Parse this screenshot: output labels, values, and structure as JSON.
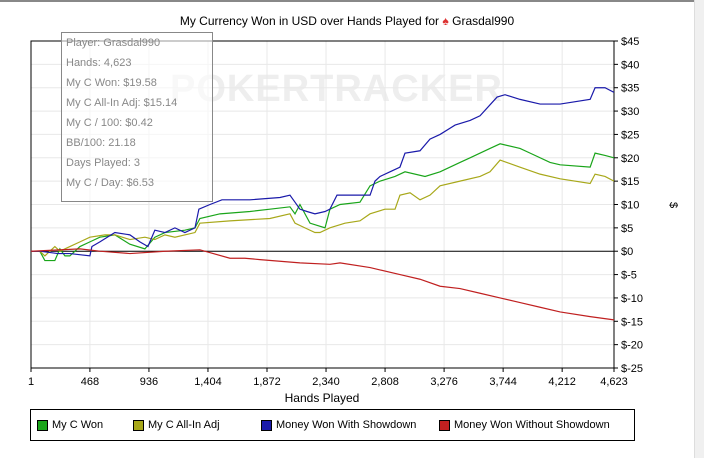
{
  "chart_data": {
    "type": "line",
    "title": "My Currency Won in USD over Hands Played for",
    "player": "Grasdal990",
    "xlabel": "Hands Played",
    "ylabel": "$",
    "xlim": [
      1,
      4623
    ],
    "ylim": [
      -25,
      45
    ],
    "xticks": [
      "1",
      "468",
      "936",
      "1,404",
      "1,872",
      "2,340",
      "2,808",
      "3,276",
      "3,744",
      "4,212",
      "4,623"
    ],
    "xtick_values": [
      1,
      468,
      936,
      1404,
      1872,
      2340,
      2808,
      3276,
      3744,
      4212,
      4623
    ],
    "yticks": [
      45,
      40,
      35,
      30,
      25,
      20,
      15,
      10,
      5,
      0,
      -5,
      -10,
      -15,
      -20,
      -25
    ],
    "ytick_labels": [
      "$45",
      "$40",
      "$35",
      "$30",
      "$25",
      "$20",
      "$15",
      "$10",
      "$5",
      "$0",
      "$-5",
      "$-10",
      "$-15",
      "$-20",
      "$-25"
    ],
    "grid": true,
    "legend": "bottom",
    "watermark": "POKERTRACKER",
    "series": [
      {
        "name": "My C Won",
        "color": "#1aa51a",
        "x": [
          1,
          71,
          111,
          190,
          230,
          270,
          309,
          389,
          468,
          547,
          666,
          785,
          904,
          983,
          1063,
          1221,
          1301,
          1340,
          1499,
          1737,
          1895,
          2054,
          2094,
          2133,
          2213,
          2332,
          2371,
          2451,
          2609,
          2689,
          2768,
          2887,
          2966,
          3125,
          3244,
          3402,
          3482,
          3640,
          3720,
          3878,
          3958,
          4116,
          4196,
          4434,
          4473,
          4552,
          4623
        ],
        "y": [
          0,
          0,
          -2,
          -2,
          0.5,
          -1,
          -1,
          1,
          2,
          3,
          3.5,
          1.5,
          0.5,
          3,
          4,
          4.5,
          5,
          7,
          8,
          8.5,
          9,
          9.5,
          8,
          10,
          6,
          5,
          9,
          10,
          10.5,
          14,
          15,
          16,
          17,
          16,
          17,
          19,
          20,
          22,
          23,
          22,
          21,
          19,
          18.5,
          18,
          21,
          20.5,
          20
        ]
      },
      {
        "name": "My C All-In Adj",
        "color": "#a8a81a",
        "x": [
          1,
          71,
          111,
          190,
          230,
          309,
          389,
          468,
          587,
          666,
          785,
          904,
          983,
          1063,
          1142,
          1301,
          1340,
          1578,
          1895,
          2054,
          2094,
          2173,
          2252,
          2292,
          2371,
          2490,
          2609,
          2689,
          2807,
          2887,
          2926,
          3006,
          3085,
          3164,
          3244,
          3402,
          3561,
          3640,
          3720,
          3878,
          4037,
          4196,
          4434,
          4473,
          4552,
          4623
        ],
        "y": [
          0,
          0,
          -1,
          1,
          0,
          1,
          2,
          3,
          3.5,
          3.5,
          2.5,
          3,
          2.5,
          3.5,
          3,
          4,
          6,
          6.5,
          7,
          8,
          6,
          5,
          4,
          4,
          5,
          6,
          6.5,
          8,
          9,
          9,
          12,
          12.5,
          11,
          12,
          14,
          15,
          16,
          17,
          19.5,
          18,
          16.5,
          15.5,
          14.5,
          16.5,
          16,
          15
        ]
      },
      {
        "name": "Money Won With Showdown",
        "color": "#1a1aaa",
        "x": [
          1,
          71,
          214,
          309,
          468,
          484,
          547,
          666,
          785,
          864,
          928,
          983,
          1063,
          1142,
          1221,
          1301,
          1332,
          1420,
          1515,
          1737,
          1975,
          2054,
          2094,
          2133,
          2189,
          2252,
          2332,
          2371,
          2427,
          2490,
          2689,
          2728,
          2768,
          2847,
          2926,
          2966,
          3085,
          3164,
          3244,
          3363,
          3482,
          3561,
          3696,
          3759,
          3878,
          4037,
          4196,
          4434,
          4473,
          4552,
          4623
        ],
        "y": [
          0,
          0,
          -0.5,
          -0.5,
          -1,
          1,
          2,
          4,
          3.5,
          2,
          1,
          4.5,
          4,
          5,
          4,
          5,
          9,
          10,
          11,
          11,
          11.5,
          12,
          10.5,
          9,
          8.5,
          8,
          8.5,
          9,
          12,
          12,
          12,
          15,
          16,
          17,
          18,
          21,
          21.5,
          24,
          25,
          27,
          28,
          29,
          33,
          33.5,
          32.5,
          31.5,
          31.5,
          32.5,
          35,
          35,
          34
        ]
      },
      {
        "name": "Money Won Without Showdown",
        "color": "#c02020",
        "x": [
          1,
          389,
          547,
          785,
          1063,
          1340,
          1578,
          1697,
          1816,
          2133,
          2371,
          2451,
          2689,
          2768,
          2926,
          3085,
          3244,
          3402,
          3561,
          3720,
          3878,
          4037,
          4196,
          4434,
          4623
        ],
        "y": [
          0,
          0.5,
          0,
          -0.5,
          0,
          0.3,
          -1.5,
          -1.5,
          -1.8,
          -2.5,
          -2.8,
          -2.5,
          -3.5,
          -4,
          -5,
          -6,
          -7.5,
          -8,
          -9,
          -10,
          -11,
          -12,
          -13,
          -14,
          -14.7
        ]
      }
    ]
  },
  "tooltip": [
    "Player: Grasdal990",
    "Hands: 4,623",
    "My C Won: $19.58",
    "My C All-In Adj: $15.14",
    "My C / 100: $0.42",
    "BB/100: 21.18",
    "Days Played: 3",
    "My C / Day: $6.53"
  ]
}
